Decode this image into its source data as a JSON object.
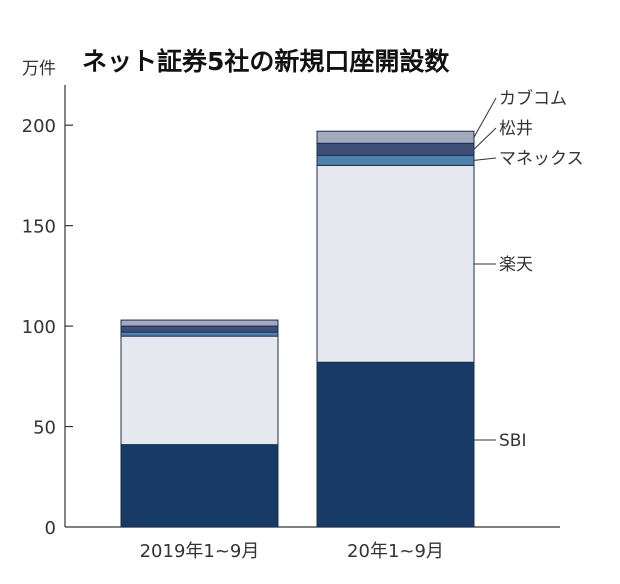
{
  "chart_data": {
    "type": "bar",
    "stacked": true,
    "title": "ネット証券5社の新規口座開設数",
    "unit_label": "万件",
    "categories": [
      "2019年1~9月",
      "20年1~9月"
    ],
    "ylim": [
      0,
      220
    ],
    "yticks": [
      0,
      50,
      100,
      150,
      200
    ],
    "grid": false,
    "legend": "direct labels on right side of second bar",
    "series": [
      {
        "name": "SBI",
        "color": "#173b66",
        "values": [
          41,
          82
        ]
      },
      {
        "name": "楽天",
        "color": "#e6e8ef",
        "values": [
          54,
          98
        ]
      },
      {
        "name": "マネックス",
        "color": "#4e82ad",
        "values": [
          2,
          5
        ]
      },
      {
        "name": "松井",
        "color": "#3d4f74",
        "values": [
          3,
          6
        ]
      },
      {
        "name": "カブコム",
        "color": "#a4a9c0",
        "values": [
          3,
          6
        ]
      }
    ]
  }
}
